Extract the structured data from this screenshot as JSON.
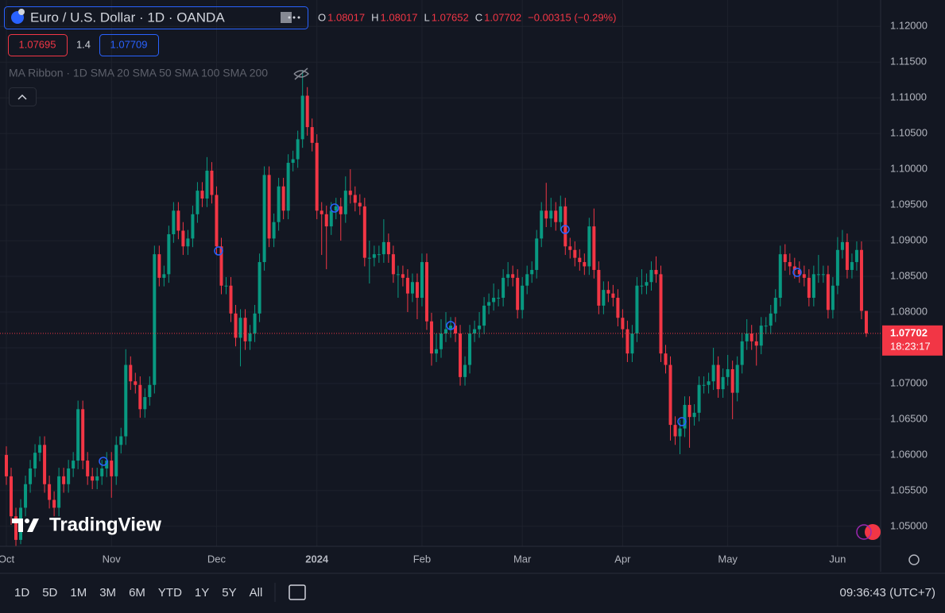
{
  "header": {
    "symbol": "Euro / U.S. Dollar · 1D · OANDA",
    "ohlc_labels": [
      "O",
      "H",
      "L",
      "C"
    ],
    "change": "−0.00315 (−0.29%)",
    "bid": "1.07695",
    "spread": "1.4",
    "ask": "1.07709",
    "indicator": "MA Ribbon · 1D SMA 20 SMA 50 SMA 100 SMA 200"
  },
  "watermark": "TradingView",
  "countdown": "18:23:17",
  "toolbar": {
    "ranges": [
      "1D",
      "5D",
      "1M",
      "3M",
      "6M",
      "YTD",
      "1Y",
      "5Y",
      "All"
    ],
    "time": "09:36:43 (UTC+7)"
  },
  "chart_data": {
    "type": "candlestick",
    "up_color": "#089981",
    "down_color": "#f23645",
    "grid": true,
    "xlim": [
      -1.33,
      183
    ],
    "xticks": [
      {
        "value": 0,
        "label": "Oct"
      },
      {
        "value": 22,
        "label": "Nov"
      },
      {
        "value": 44,
        "label": "Dec"
      },
      {
        "value": 65,
        "label": "2024"
      },
      {
        "value": 87,
        "label": "Feb"
      },
      {
        "value": 108,
        "label": "Mar"
      },
      {
        "value": 129,
        "label": "Apr"
      },
      {
        "value": 151,
        "label": "May"
      },
      {
        "value": 174,
        "label": "Jun"
      }
    ],
    "ylim": [
      1.0472,
      1.1237
    ],
    "yticks": [
      {
        "value": 1.12,
        "label": "1.12000"
      },
      {
        "value": 1.115,
        "label": "1.11500"
      },
      {
        "value": 1.11,
        "label": "1.11000"
      },
      {
        "value": 1.105,
        "label": "1.10500"
      },
      {
        "value": 1.1,
        "label": "1.10000"
      },
      {
        "value": 1.095,
        "label": "1.09500"
      },
      {
        "value": 1.09,
        "label": "1.09000"
      },
      {
        "value": 1.085,
        "label": "1.08500"
      },
      {
        "value": 1.08,
        "label": "1.08000"
      },
      {
        "value": 1.075,
        "label": "1.07500"
      },
      {
        "value": 1.07,
        "label": "1.07000"
      },
      {
        "value": 1.065,
        "label": "1.06500"
      },
      {
        "value": 1.06,
        "label": "1.06000"
      },
      {
        "value": 1.055,
        "label": "1.05500"
      },
      {
        "value": 1.05,
        "label": "1.05000"
      }
    ],
    "ohlc": [
      [
        1.06,
        1.0612,
        1.0558,
        1.057
      ],
      [
        1.057,
        1.0582,
        1.0502,
        1.0514
      ],
      [
        1.0514,
        1.0526,
        1.0472,
        1.0481
      ],
      [
        1.0481,
        1.0538,
        1.0475,
        1.0526
      ],
      [
        1.0526,
        1.0571,
        1.0514,
        1.0559
      ],
      [
        1.0559,
        1.0593,
        1.0547,
        1.0581
      ],
      [
        1.0581,
        1.0615,
        1.0569,
        1.0603
      ],
      [
        1.0603,
        1.0626,
        1.0591,
        1.0614
      ],
      [
        1.0614,
        1.0626,
        1.0547,
        1.0559
      ],
      [
        1.0559,
        1.0571,
        1.0525,
        1.0537
      ],
      [
        1.0537,
        1.0549,
        1.0514,
        1.0526
      ],
      [
        1.0526,
        1.0582,
        1.0514,
        1.057
      ],
      [
        1.057,
        1.0582,
        1.0547,
        1.0559
      ],
      [
        1.0559,
        1.0593,
        1.0547,
        1.0581
      ],
      [
        1.0581,
        1.0604,
        1.0569,
        1.0592
      ],
      [
        1.0592,
        1.0676,
        1.058,
        1.0664
      ],
      [
        1.0664,
        1.0676,
        1.058,
        1.0592
      ],
      [
        1.0592,
        1.0604,
        1.0558,
        1.057
      ],
      [
        1.057,
        1.0582,
        1.0552,
        1.0564
      ],
      [
        1.0564,
        1.0582,
        1.0552,
        1.057
      ],
      [
        1.057,
        1.0593,
        1.0558,
        1.0581
      ],
      [
        1.0581,
        1.0604,
        1.0569,
        1.0592
      ],
      [
        1.0592,
        1.0604,
        1.054,
        1.057
      ],
      [
        1.057,
        1.0626,
        1.0558,
        1.0614
      ],
      [
        1.0614,
        1.0638,
        1.0602,
        1.0626
      ],
      [
        1.0626,
        1.0748,
        1.0614,
        1.0726
      ],
      [
        1.0726,
        1.0738,
        1.0691,
        1.0703
      ],
      [
        1.0703,
        1.0715,
        1.0686,
        1.0698
      ],
      [
        1.0698,
        1.071,
        1.0652,
        1.0664
      ],
      [
        1.0664,
        1.0693,
        1.0652,
        1.0681
      ],
      [
        1.0681,
        1.071,
        1.0669,
        1.0698
      ],
      [
        1.0698,
        1.0893,
        1.0686,
        1.0881
      ],
      [
        1.0881,
        1.0893,
        1.0836,
        1.0848
      ],
      [
        1.0848,
        1.0865,
        1.0836,
        1.0853
      ],
      [
        1.0853,
        1.0921,
        1.0841,
        1.0909
      ],
      [
        1.0909,
        1.0954,
        1.0897,
        1.0942
      ],
      [
        1.0942,
        1.0954,
        1.0902,
        1.0914
      ],
      [
        1.0914,
        1.0926,
        1.088,
        1.0892
      ],
      [
        1.0892,
        1.0915,
        1.088,
        1.0903
      ],
      [
        1.0903,
        1.0949,
        1.0891,
        1.0937
      ],
      [
        1.0937,
        1.0982,
        1.0925,
        1.097
      ],
      [
        1.097,
        1.0982,
        1.0947,
        1.0959
      ],
      [
        1.0959,
        1.1017,
        1.0947,
        1.0998
      ],
      [
        1.0998,
        1.101,
        1.0952,
        1.0964
      ],
      [
        1.0964,
        1.0976,
        1.088,
        1.0892
      ],
      [
        1.0892,
        1.0904,
        1.0825,
        1.0837
      ],
      [
        1.0837,
        1.0849,
        1.0825,
        1.0837
      ],
      [
        1.0837,
        1.0849,
        1.0786,
        1.0798
      ],
      [
        1.0798,
        1.081,
        1.0752,
        1.0764
      ],
      [
        1.0764,
        1.0804,
        1.0724,
        1.0792
      ],
      [
        1.0792,
        1.0804,
        1.0747,
        1.0759
      ],
      [
        1.0759,
        1.0782,
        1.0747,
        1.077
      ],
      [
        1.077,
        1.081,
        1.0758,
        1.0798
      ],
      [
        1.0798,
        1.0882,
        1.0786,
        1.087
      ],
      [
        1.087,
        1.1004,
        1.0858,
        1.0992
      ],
      [
        1.0992,
        1.1004,
        1.0891,
        1.0903
      ],
      [
        1.0903,
        1.0938,
        1.0891,
        1.0926
      ],
      [
        1.0926,
        1.0988,
        1.0914,
        1.0976
      ],
      [
        1.0976,
        1.0988,
        1.093,
        1.0942
      ],
      [
        1.0942,
        1.1021,
        1.093,
        1.1009
      ],
      [
        1.1009,
        1.1026,
        1.0997,
        1.1014
      ],
      [
        1.1014,
        1.1054,
        1.1002,
        1.1042
      ],
      [
        1.1042,
        1.1139,
        1.103,
        1.1103
      ],
      [
        1.1103,
        1.1115,
        1.1047,
        1.1059
      ],
      [
        1.1059,
        1.1071,
        1.1025,
        1.1037
      ],
      [
        1.1037,
        1.1049,
        1.093,
        1.0942
      ],
      [
        1.0942,
        1.0954,
        1.088,
        1.0937
      ],
      [
        1.0937,
        1.0949,
        1.086,
        1.092
      ],
      [
        1.092,
        1.0954,
        1.0908,
        1.0942
      ],
      [
        1.0942,
        1.096,
        1.093,
        1.0948
      ],
      [
        1.0948,
        1.096,
        1.09,
        1.0937
      ],
      [
        1.0937,
        1.099,
        1.0925,
        1.097
      ],
      [
        1.097,
        1.1,
        1.0952,
        1.0964
      ],
      [
        1.0964,
        1.0976,
        1.0941,
        1.0953
      ],
      [
        1.0953,
        1.0965,
        1.0936,
        1.0948
      ],
      [
        1.0948,
        1.096,
        1.0864,
        1.0876
      ],
      [
        1.0876,
        1.09,
        1.084,
        1.0876
      ],
      [
        1.0876,
        1.0893,
        1.0864,
        1.0881
      ],
      [
        1.0881,
        1.0893,
        1.0869,
        1.0881
      ],
      [
        1.0881,
        1.093,
        1.0869,
        1.0898
      ],
      [
        1.0898,
        1.091,
        1.0869,
        1.0881
      ],
      [
        1.0881,
        1.0893,
        1.0841,
        1.0853
      ],
      [
        1.0853,
        1.0865,
        1.082,
        1.0853
      ],
      [
        1.0853,
        1.0865,
        1.0836,
        1.0848
      ],
      [
        1.0848,
        1.086,
        1.08,
        1.0826
      ],
      [
        1.0826,
        1.0854,
        1.0814,
        1.0842
      ],
      [
        1.0842,
        1.0854,
        1.079,
        1.082
      ],
      [
        1.082,
        1.0882,
        1.0808,
        1.087
      ],
      [
        1.087,
        1.0882,
        1.0775,
        1.0787
      ],
      [
        1.0787,
        1.0799,
        1.0725,
        1.0742
      ],
      [
        1.0742,
        1.077,
        1.073,
        1.0748
      ],
      [
        1.0748,
        1.079,
        1.0736,
        1.077
      ],
      [
        1.077,
        1.08,
        1.0758,
        1.0776
      ],
      [
        1.0776,
        1.0793,
        1.0764,
        1.0781
      ],
      [
        1.0781,
        1.0793,
        1.0758,
        1.077
      ],
      [
        1.077,
        1.0782,
        1.0697,
        1.0709
      ],
      [
        1.0709,
        1.0738,
        1.0697,
        1.0726
      ],
      [
        1.0726,
        1.0782,
        1.0714,
        1.077
      ],
      [
        1.077,
        1.0788,
        1.0758,
        1.0776
      ],
      [
        1.0776,
        1.08,
        1.0764,
        1.0781
      ],
      [
        1.0781,
        1.0821,
        1.0769,
        1.0809
      ],
      [
        1.0809,
        1.0826,
        1.0797,
        1.0814
      ],
      [
        1.0814,
        1.084,
        1.0802,
        1.082
      ],
      [
        1.082,
        1.0832,
        1.0808,
        1.082
      ],
      [
        1.082,
        1.086,
        1.0808,
        1.0848
      ],
      [
        1.0848,
        1.087,
        1.0836,
        1.0853
      ],
      [
        1.0853,
        1.0865,
        1.0836,
        1.0848
      ],
      [
        1.0848,
        1.086,
        1.0791,
        1.0803
      ],
      [
        1.0803,
        1.0849,
        1.0791,
        1.0837
      ],
      [
        1.0837,
        1.0865,
        1.0825,
        1.0853
      ],
      [
        1.0853,
        1.0871,
        1.0841,
        1.0859
      ],
      [
        1.0859,
        1.0915,
        1.0847,
        1.0903
      ],
      [
        1.0903,
        1.0954,
        1.0891,
        1.0942
      ],
      [
        1.0942,
        1.0981,
        1.0919,
        1.0931
      ],
      [
        1.0931,
        1.096,
        1.0919,
        1.0942
      ],
      [
        1.0942,
        1.0954,
        1.0914,
        1.0926
      ],
      [
        1.0926,
        1.0963,
        1.0914,
        1.0948
      ],
      [
        1.0948,
        1.096,
        1.088,
        1.0892
      ],
      [
        1.0892,
        1.0904,
        1.0875,
        1.0887
      ],
      [
        1.0887,
        1.0899,
        1.0864,
        1.0876
      ],
      [
        1.0876,
        1.0888,
        1.0858,
        1.087
      ],
      [
        1.087,
        1.0882,
        1.0852,
        1.0864
      ],
      [
        1.0864,
        1.0932,
        1.0852,
        1.092
      ],
      [
        1.092,
        1.0945,
        1.0847,
        1.0859
      ],
      [
        1.0859,
        1.0871,
        1.0797,
        1.0809
      ],
      [
        1.0809,
        1.0843,
        1.0797,
        1.0831
      ],
      [
        1.0831,
        1.0843,
        1.0814,
        1.0826
      ],
      [
        1.0826,
        1.0838,
        1.0808,
        1.082
      ],
      [
        1.082,
        1.0832,
        1.078,
        1.0792
      ],
      [
        1.0792,
        1.0804,
        1.0764,
        1.0776
      ],
      [
        1.0776,
        1.0788,
        1.073,
        1.0742
      ],
      [
        1.0742,
        1.0782,
        1.073,
        1.077
      ],
      [
        1.077,
        1.0849,
        1.0758,
        1.0837
      ],
      [
        1.0837,
        1.086,
        1.0825,
        1.0837
      ],
      [
        1.0837,
        1.0854,
        1.0825,
        1.0842
      ],
      [
        1.0842,
        1.0871,
        1.083,
        1.0859
      ],
      [
        1.0859,
        1.0878,
        1.0841,
        1.0853
      ],
      [
        1.0853,
        1.0865,
        1.073,
        1.0742
      ],
      [
        1.0742,
        1.0754,
        1.0714,
        1.0726
      ],
      [
        1.0726,
        1.0738,
        1.062,
        1.0642
      ],
      [
        1.0642,
        1.0654,
        1.0614,
        1.0626
      ],
      [
        1.0626,
        1.0649,
        1.0601,
        1.0637
      ],
      [
        1.0637,
        1.0682,
        1.0625,
        1.067
      ],
      [
        1.067,
        1.0682,
        1.061,
        1.0653
      ],
      [
        1.0653,
        1.0671,
        1.0641,
        1.0659
      ],
      [
        1.0659,
        1.071,
        1.0647,
        1.0698
      ],
      [
        1.0698,
        1.071,
        1.0686,
        1.0698
      ],
      [
        1.0698,
        1.0715,
        1.0686,
        1.0703
      ],
      [
        1.0703,
        1.075,
        1.0691,
        1.0726
      ],
      [
        1.0726,
        1.0738,
        1.068,
        1.0692
      ],
      [
        1.0692,
        1.0721,
        1.068,
        1.0709
      ],
      [
        1.0709,
        1.074,
        1.0697,
        1.072
      ],
      [
        1.072,
        1.0732,
        1.065,
        1.0687
      ],
      [
        1.0687,
        1.0738,
        1.0675,
        1.0726
      ],
      [
        1.0726,
        1.0771,
        1.0714,
        1.0759
      ],
      [
        1.0759,
        1.079,
        1.0747,
        1.077
      ],
      [
        1.077,
        1.0782,
        1.0747,
        1.0759
      ],
      [
        1.0759,
        1.0771,
        1.0725,
        1.0753
      ],
      [
        1.0753,
        1.0793,
        1.0741,
        1.0781
      ],
      [
        1.0781,
        1.0793,
        1.0769,
        1.0781
      ],
      [
        1.0781,
        1.081,
        1.0769,
        1.0798
      ],
      [
        1.0798,
        1.0832,
        1.0786,
        1.082
      ],
      [
        1.082,
        1.0893,
        1.0808,
        1.0881
      ],
      [
        1.0881,
        1.0895,
        1.0858,
        1.087
      ],
      [
        1.087,
        1.0882,
        1.0852,
        1.0864
      ],
      [
        1.0864,
        1.0876,
        1.0847,
        1.0859
      ],
      [
        1.0859,
        1.0871,
        1.0841,
        1.0853
      ],
      [
        1.0853,
        1.0865,
        1.0836,
        1.0848
      ],
      [
        1.0848,
        1.086,
        1.0808,
        1.082
      ],
      [
        1.082,
        1.0865,
        1.0808,
        1.0853
      ],
      [
        1.0853,
        1.088,
        1.0841,
        1.0853
      ],
      [
        1.0853,
        1.0865,
        1.0841,
        1.0853
      ],
      [
        1.0853,
        1.0865,
        1.0791,
        1.0803
      ],
      [
        1.0803,
        1.0849,
        1.0791,
        1.0837
      ],
      [
        1.0837,
        1.0905,
        1.0825,
        1.0887
      ],
      [
        1.0887,
        1.0915,
        1.0875,
        1.0898
      ],
      [
        1.0898,
        1.091,
        1.0847,
        1.0859
      ],
      [
        1.0859,
        1.0882,
        1.0847,
        1.087
      ],
      [
        1.087,
        1.0899,
        1.0858,
        1.0887
      ],
      [
        1.0887,
        1.0899,
        1.079,
        1.08017
      ],
      [
        1.08017,
        1.08017,
        1.07652,
        1.07702
      ]
    ]
  }
}
